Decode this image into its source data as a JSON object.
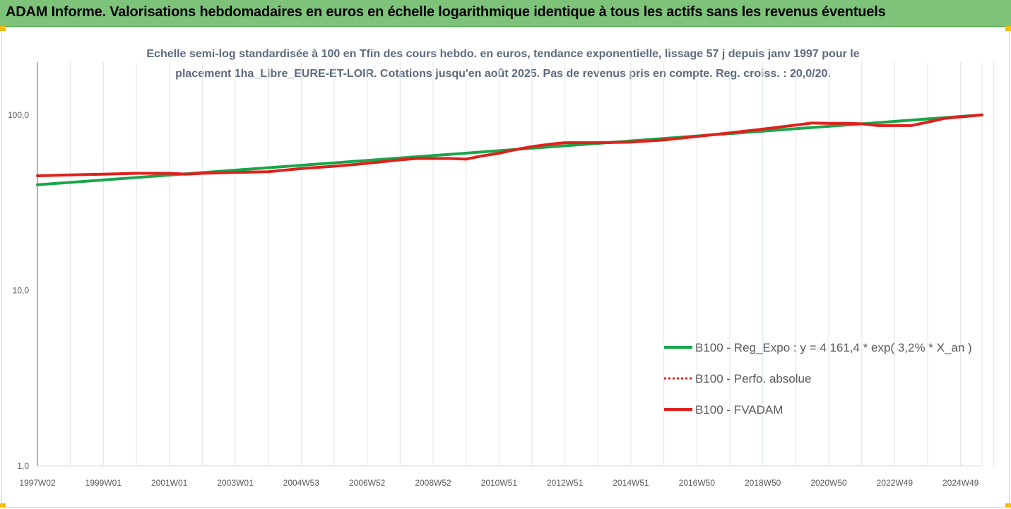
{
  "header": {
    "title": "ADAM Informe. Valorisations hebdomadaires en euros en échelle logarithmique identique à tous les actifs sans les revenus éventuels"
  },
  "chart_data": {
    "type": "line",
    "title_line1": "Echelle semi-log standardisée à 100 en Tfin des cours hebdo. en euros, tendance exponentielle, lissage 57 j depuis janv 1997 pour le",
    "title_line2": "placement 1ha_Libre_EURE-ET-LOIR. Cotations jusqu'en août 2025. Pas de revenus pris en compte. Reg. croiss. : 20,0/20.",
    "y_scale": "log",
    "ylim": [
      1,
      200
    ],
    "y_ticks": [
      {
        "value": 1,
        "label": "1,0"
      },
      {
        "value": 10,
        "label": "10,0"
      },
      {
        "value": 100,
        "label": "100,0"
      }
    ],
    "x_range": [
      1997.0,
      2025.65
    ],
    "x_ticks": [
      {
        "x": 1997.0,
        "label": "1997W02"
      },
      {
        "x": 1999.0,
        "label": "1999W01"
      },
      {
        "x": 2001.0,
        "label": "2001W01"
      },
      {
        "x": 2003.0,
        "label": "2003W01"
      },
      {
        "x": 2005.0,
        "label": "2004W53"
      },
      {
        "x": 2007.0,
        "label": "2006W52"
      },
      {
        "x": 2009.0,
        "label": "2008W52"
      },
      {
        "x": 2011.0,
        "label": "2010W51"
      },
      {
        "x": 2013.0,
        "label": "2012W51"
      },
      {
        "x": 2015.0,
        "label": "2014W51"
      },
      {
        "x": 2017.0,
        "label": "2016W50"
      },
      {
        "x": 2019.0,
        "label": "2018W50"
      },
      {
        "x": 2021.0,
        "label": "2020W50"
      },
      {
        "x": 2023.0,
        "label": "2022W49"
      },
      {
        "x": 2025.0,
        "label": "2024W49"
      }
    ],
    "grid": "vertical",
    "legend_position": "bottom-right",
    "series": [
      {
        "name": "B100 - Reg_Expo : y = 4 161,4 * exp( 3,2% *  X_an )",
        "color": "#1aa54a",
        "style": "solid",
        "points": [
          [
            1997.0,
            40.0
          ],
          [
            2025.65,
            100.0
          ]
        ]
      },
      {
        "name": "B100 - Perfo. absolue",
        "color": "#e0201b",
        "style": "dotted",
        "points": [
          [
            1997.0,
            45.0
          ],
          [
            1998.0,
            45.5
          ],
          [
            1999.0,
            46.0
          ],
          [
            2000.0,
            46.5
          ],
          [
            2001.0,
            46.5
          ],
          [
            2001.5,
            46.0
          ],
          [
            2002.0,
            46.5
          ],
          [
            2003.0,
            47.0
          ],
          [
            2004.0,
            47.5
          ],
          [
            2004.5,
            48.5
          ],
          [
            2005.0,
            49.5
          ],
          [
            2006.0,
            51.0
          ],
          [
            2007.0,
            53.0
          ],
          [
            2008.0,
            55.5
          ],
          [
            2008.5,
            56.5
          ],
          [
            2009.5,
            56.5
          ],
          [
            2010.0,
            56.0
          ],
          [
            2010.5,
            58.5
          ],
          [
            2011.0,
            60.5
          ],
          [
            2011.5,
            63.5
          ],
          [
            2012.0,
            66.0
          ],
          [
            2012.5,
            68.0
          ],
          [
            2013.0,
            69.5
          ],
          [
            2014.0,
            69.5
          ],
          [
            2015.0,
            70.0
          ],
          [
            2016.0,
            72.0
          ],
          [
            2017.0,
            75.5
          ],
          [
            2018.0,
            79.0
          ],
          [
            2019.0,
            83.0
          ],
          [
            2020.0,
            87.5
          ],
          [
            2020.5,
            90.0
          ],
          [
            2021.0,
            89.5
          ],
          [
            2021.5,
            89.5
          ],
          [
            2022.0,
            89.0
          ],
          [
            2022.5,
            87.0
          ],
          [
            2023.0,
            87.0
          ],
          [
            2023.5,
            87.0
          ],
          [
            2024.0,
            91.0
          ],
          [
            2024.5,
            95.5
          ],
          [
            2025.0,
            97.5
          ],
          [
            2025.65,
            100.0
          ]
        ]
      },
      {
        "name": "B100 - FVADAM",
        "color": "#e0201b",
        "style": "solid",
        "points": [
          [
            1997.0,
            45.0
          ],
          [
            1998.0,
            45.5
          ],
          [
            1999.0,
            46.0
          ],
          [
            2000.0,
            46.5
          ],
          [
            2001.0,
            46.5
          ],
          [
            2001.5,
            46.0
          ],
          [
            2002.0,
            46.5
          ],
          [
            2003.0,
            47.0
          ],
          [
            2004.0,
            47.5
          ],
          [
            2004.5,
            48.5
          ],
          [
            2005.0,
            49.5
          ],
          [
            2006.0,
            51.0
          ],
          [
            2007.0,
            53.0
          ],
          [
            2008.0,
            55.5
          ],
          [
            2008.5,
            56.5
          ],
          [
            2009.5,
            56.5
          ],
          [
            2010.0,
            56.0
          ],
          [
            2010.5,
            58.5
          ],
          [
            2011.0,
            60.5
          ],
          [
            2011.5,
            63.5
          ],
          [
            2012.0,
            66.0
          ],
          [
            2012.5,
            68.0
          ],
          [
            2013.0,
            69.5
          ],
          [
            2014.0,
            69.5
          ],
          [
            2015.0,
            70.0
          ],
          [
            2016.0,
            72.0
          ],
          [
            2017.0,
            75.5
          ],
          [
            2018.0,
            79.0
          ],
          [
            2019.0,
            83.0
          ],
          [
            2020.0,
            87.5
          ],
          [
            2020.5,
            90.0
          ],
          [
            2021.0,
            89.5
          ],
          [
            2021.5,
            89.5
          ],
          [
            2022.0,
            89.0
          ],
          [
            2022.5,
            87.0
          ],
          [
            2023.0,
            87.0
          ],
          [
            2023.5,
            87.0
          ],
          [
            2024.0,
            91.0
          ],
          [
            2024.5,
            95.5
          ],
          [
            2025.0,
            97.5
          ],
          [
            2025.65,
            100.0
          ]
        ]
      }
    ]
  }
}
